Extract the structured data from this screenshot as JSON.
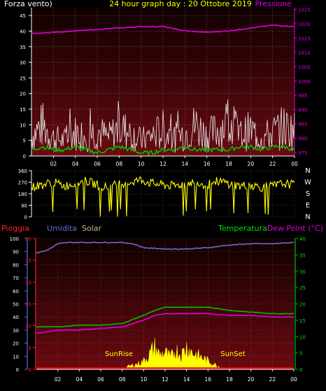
{
  "header": {
    "wind_label": "Forza vento)",
    "title": "24 hour graph day : 20 Ottobre 2019",
    "pressure_label": "Pressione"
  },
  "bottom_header": {
    "rain_label": "Pioggia",
    "humidity_label": "Umidita",
    "solar_label": "Solar",
    "temperature_label": "Temperatura",
    "dewpoint_label": "Dew Point (°C)"
  },
  "colors": {
    "wind": "#e8e8e8",
    "wind_avg": "#00c000",
    "pressure": "#e000e0",
    "direction": "#ffff00",
    "rain": "#ff0000",
    "humidity": "#6070d0",
    "solar": "#ffff00",
    "temperature": "#00c000",
    "dewpoint": "#e000e0",
    "plot_bg_top": "#100000",
    "plot_bg_bottom": "#6a0a10"
  },
  "x_ticks": [
    "02",
    "04",
    "06",
    "08",
    "10",
    "12",
    "14",
    "16",
    "18",
    "20",
    "22",
    "00"
  ],
  "compass_labels": [
    "N",
    "W",
    "S",
    "E",
    "N"
  ],
  "chart_data": [
    {
      "id": "wind",
      "type": "line",
      "y_left_ticks": [
        "0",
        "5",
        "10",
        "15",
        "20",
        "25",
        "30",
        "35",
        "40",
        "45"
      ],
      "ylim_left": [
        0,
        47.5
      ],
      "y_right_ticks": [
        "975",
        "980",
        "985",
        "990",
        "995",
        "1000",
        "1005",
        "1010",
        "1015",
        "1020",
        "1025"
      ],
      "ylim_right": [
        973.8,
        1025.6
      ],
      "grid": true,
      "series": [
        {
          "key": "wind_gust",
          "x": [
            0,
            1,
            2,
            3,
            4,
            5,
            6,
            7,
            8,
            9,
            10,
            11,
            12,
            13,
            14,
            15,
            16,
            17,
            18,
            19,
            20,
            21,
            22,
            23,
            24
          ],
          "values": [
            8,
            12,
            7,
            6,
            9,
            8,
            10,
            7,
            11,
            9,
            6,
            8,
            10,
            7,
            9,
            12,
            8,
            10,
            14,
            8,
            10,
            7,
            9,
            11,
            10
          ]
        },
        {
          "key": "wind_avg",
          "x": [
            0,
            1,
            2,
            3,
            4,
            5,
            6,
            7,
            8,
            9,
            10,
            11,
            12,
            13,
            14,
            15,
            16,
            17,
            18,
            19,
            20,
            21,
            22,
            23,
            24
          ],
          "values": [
            2,
            3,
            2,
            2,
            3,
            2,
            1,
            2,
            3,
            2,
            1,
            1,
            2,
            2,
            3,
            2,
            2,
            2,
            2,
            3,
            3,
            2,
            3,
            3,
            2
          ]
        },
        {
          "key": "pressure",
          "x": [
            0,
            2,
            4,
            6,
            8,
            10,
            12,
            14,
            16,
            18,
            20,
            22,
            24
          ],
          "values": [
            1016.5,
            1017,
            1017.5,
            1018,
            1018.5,
            1019,
            1019,
            1017.5,
            1017,
            1017.5,
            1018.5,
            1019.5,
            1019
          ]
        }
      ]
    },
    {
      "id": "direction",
      "type": "scatter",
      "y_ticks": [
        "0",
        "90",
        "180",
        "270",
        "360"
      ],
      "ylim": [
        0,
        360
      ],
      "series": [
        {
          "key": "wind_dir",
          "x": [
            0,
            1,
            2,
            3,
            4,
            5,
            6,
            7,
            8,
            9,
            10,
            11,
            12,
            13,
            14,
            15,
            16,
            17,
            18,
            19,
            20,
            21,
            22,
            23,
            24
          ],
          "values": [
            230,
            250,
            270,
            240,
            260,
            280,
            250,
            230,
            260,
            270,
            290,
            260,
            250,
            240,
            260,
            270,
            250,
            280,
            260,
            240,
            250,
            230,
            240,
            260,
            250
          ]
        }
      ]
    },
    {
      "id": "weather",
      "type": "line",
      "y_left_ticks": [
        "0",
        "10",
        "20",
        "30",
        "40",
        "50",
        "60",
        "70",
        "80",
        "90",
        "100"
      ],
      "ylim_left": [
        0,
        100
      ],
      "y_rain_ticks": [
        "0",
        "5",
        "10",
        "15",
        "20",
        "25",
        "30"
      ],
      "y_right_ticks": [
        "0",
        "5",
        "10",
        "15",
        "20",
        "25",
        "30",
        "35",
        "40"
      ],
      "ylim_right": [
        0,
        40
      ],
      "annotations": [
        "SunRise",
        "SunSet"
      ],
      "series": [
        {
          "key": "humidity",
          "x": [
            0,
            1,
            2,
            3,
            4,
            6,
            8,
            9,
            10,
            12,
            14,
            16,
            18,
            20,
            22,
            24
          ],
          "values": [
            89,
            91,
            96,
            97,
            97,
            97,
            97,
            96,
            93,
            92,
            92,
            93,
            95,
            96,
            96,
            97
          ]
        },
        {
          "key": "temperature",
          "x": [
            0,
            2,
            4,
            6,
            8,
            10,
            11,
            12,
            13,
            14,
            16,
            18,
            20,
            22,
            24
          ],
          "values": [
            13,
            13,
            13.5,
            13.5,
            14,
            16.5,
            18,
            19,
            19,
            19,
            19,
            18,
            17.5,
            17,
            17
          ]
        },
        {
          "key": "dewpoint",
          "x": [
            0,
            2,
            4,
            6,
            8,
            10,
            11,
            12,
            13,
            14,
            16,
            18,
            20,
            22,
            24
          ],
          "values": [
            11,
            12,
            12,
            12.5,
            13,
            15,
            16.5,
            17,
            17,
            17,
            17,
            16.5,
            16.5,
            16,
            16
          ]
        },
        {
          "key": "solar",
          "x": [
            0,
            7,
            8,
            8.5,
            9,
            9.5,
            10,
            10.5,
            11,
            11.5,
            12,
            12.5,
            13,
            13.5,
            14,
            14.5,
            15,
            15.5,
            16,
            16.5,
            17,
            17.5,
            24
          ],
          "values": [
            0,
            0,
            0,
            1,
            1.5,
            2,
            3,
            5,
            8,
            5,
            6,
            4,
            7,
            5,
            8,
            6,
            5,
            4,
            3,
            2,
            1,
            0,
            0
          ]
        },
        {
          "key": "rain",
          "x": [
            0,
            24
          ],
          "values": [
            0,
            0
          ]
        }
      ]
    }
  ]
}
